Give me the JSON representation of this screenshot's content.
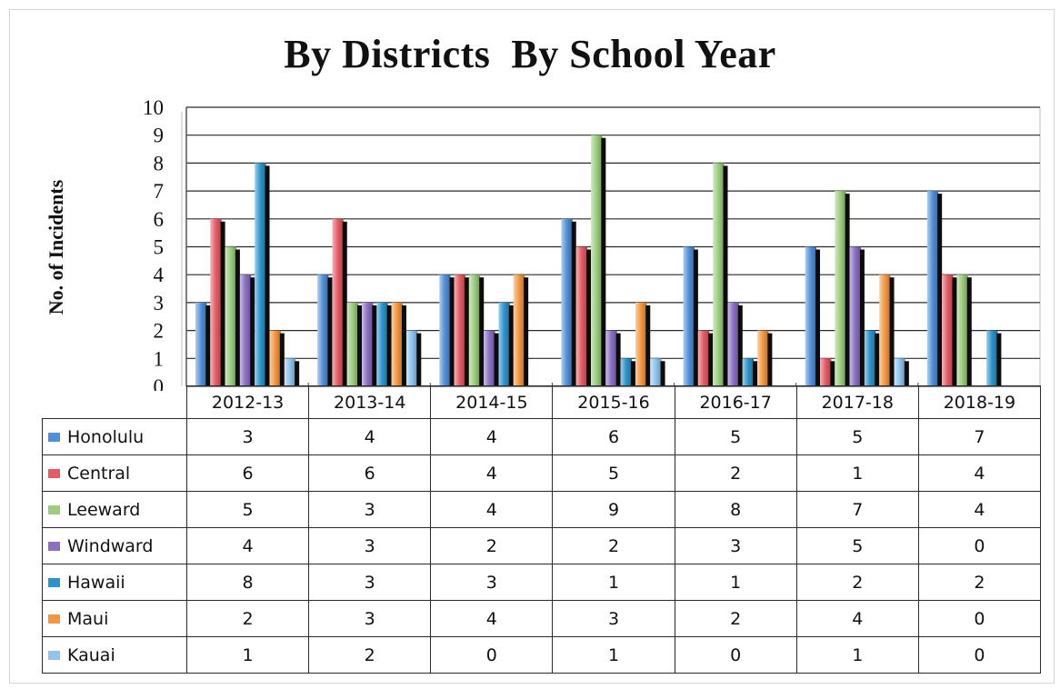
{
  "chart_data": {
    "type": "bar",
    "title": "By Districts  By School Year",
    "ylabel": "No. of Incidents",
    "xlabel": "",
    "ylim": [
      0,
      10
    ],
    "yticks": [
      "0",
      "1",
      "2",
      "3",
      "4",
      "5",
      "6",
      "7",
      "8",
      "9",
      "10"
    ],
    "grid": true,
    "legend_placement": "data-table",
    "categories": [
      "2012-13",
      "2013-14",
      "2014-15",
      "2015-16",
      "2016-17",
      "2017-18",
      "2018-19"
    ],
    "series": [
      {
        "name": "Honolulu",
        "color": "#4f8fd8",
        "values": [
          3,
          4,
          4,
          6,
          5,
          5,
          7
        ]
      },
      {
        "name": "Central",
        "color": "#e55a64",
        "values": [
          6,
          6,
          4,
          5,
          2,
          1,
          4
        ]
      },
      {
        "name": "Leeward",
        "color": "#9ccc7c",
        "values": [
          5,
          3,
          4,
          9,
          8,
          7,
          4
        ]
      },
      {
        "name": "Windward",
        "color": "#8a6fc4",
        "values": [
          4,
          3,
          2,
          2,
          3,
          5,
          0
        ]
      },
      {
        "name": "Hawaii",
        "color": "#2a94cc",
        "values": [
          8,
          3,
          3,
          1,
          1,
          2,
          2
        ]
      },
      {
        "name": "Maui",
        "color": "#f5963e",
        "values": [
          2,
          3,
          4,
          3,
          2,
          4,
          0
        ]
      },
      {
        "name": "Kauai",
        "color": "#8ec4ee",
        "values": [
          1,
          2,
          0,
          1,
          0,
          1,
          0
        ]
      }
    ]
  }
}
